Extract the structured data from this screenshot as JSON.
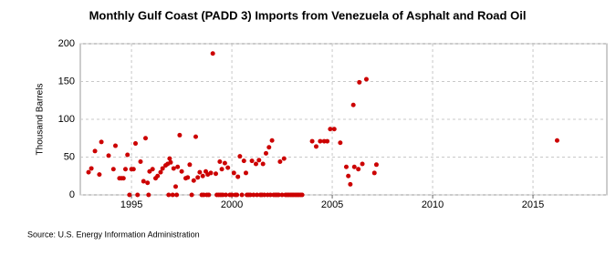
{
  "chart_data": {
    "type": "scatter",
    "title": "Monthly Gulf Coast (PADD 3) Imports from Venezuela of Asphalt and Road Oil",
    "y_label": "Thousand Barrels",
    "source": "Source: U.S. Energy Information Administration",
    "color": "#cc0000",
    "xlim": [
      1992.45,
      2018.68
    ],
    "xticks": [
      1995,
      2000,
      2005,
      2010,
      2015
    ],
    "ylim": [
      0,
      200
    ],
    "yticks": [
      0,
      50,
      100,
      150,
      200
    ],
    "grid": true,
    "x": [
      1992.86,
      1993.0,
      1993.18,
      1993.4,
      1993.5,
      1993.86,
      1994.1,
      1994.2,
      1994.4,
      1994.5,
      1994.6,
      1994.7,
      1994.8,
      1995.0,
      1995.1,
      1995.2,
      1995.45,
      1995.6,
      1995.7,
      1995.8,
      1995.9,
      1996.05,
      1996.2,
      1996.3,
      1996.45,
      1996.55,
      1996.7,
      1996.8,
      1996.9,
      1996.95,
      1997.1,
      1997.2,
      1997.3,
      1997.4,
      1997.5,
      1997.7,
      1997.8,
      1997.9,
      1998.1,
      1998.2,
      1998.3,
      1998.4,
      1998.55,
      1998.7,
      1998.8,
      1998.95,
      1999.05,
      1999.2,
      1999.4,
      1999.5,
      1999.65,
      1999.8,
      2000.1,
      2000.3,
      2000.4,
      2000.6,
      2000.7,
      2001.0,
      2001.2,
      2001.35,
      2001.55,
      2001.7,
      2001.85,
      2002.0,
      2002.4,
      2002.6,
      2004.0,
      2004.2,
      2004.4,
      2004.6,
      2004.75,
      2004.9,
      2005.1,
      2005.4,
      2005.7,
      2005.8,
      2005.9,
      2006.05,
      2006.1,
      2006.3,
      2006.35,
      2006.5,
      2006.7,
      2007.1,
      2007.2,
      2016.2,
      1994.9,
      1995.3,
      1995.85,
      1996.85,
      1997.05,
      1997.25,
      1998.0,
      1998.5,
      1998.6,
      1998.75,
      1998.85,
      1999.25,
      1999.35,
      1999.45,
      1999.55,
      1999.7,
      1999.9,
      2000.0,
      2000.17,
      2000.25,
      2000.5,
      2000.75,
      2000.83,
      2000.92,
      2001.08,
      2001.25,
      2001.42,
      2001.5,
      2001.62,
      2001.78,
      2001.92,
      2002.08,
      2002.17,
      2002.25,
      2002.33,
      2002.5,
      2002.67,
      2002.75,
      2002.83,
      2002.92,
      2003.0,
      2003.08,
      2003.17,
      2003.25,
      2003.33,
      2003.42,
      2003.5
    ],
    "values": [
      30,
      35,
      58,
      27,
      70,
      52,
      34,
      65,
      22,
      22,
      22,
      34,
      53,
      34,
      34,
      68,
      44,
      18,
      75,
      16,
      31,
      34,
      22,
      25,
      30,
      35,
      39,
      41,
      48,
      43,
      35,
      11,
      37,
      79,
      31,
      22,
      23,
      40,
      19,
      77,
      23,
      30,
      25,
      31,
      27,
      29,
      187,
      28,
      44,
      34,
      42,
      36,
      29,
      24,
      51,
      45,
      29,
      45,
      41,
      46,
      41,
      55,
      63,
      72,
      44,
      48,
      71,
      64,
      71,
      71,
      71,
      87,
      87,
      69,
      37,
      25,
      14,
      119,
      37,
      34,
      149,
      41,
      153,
      29,
      40,
      72,
      0,
      0,
      0,
      0,
      0,
      0,
      0,
      0,
      0,
      0,
      0,
      0,
      0,
      0,
      0,
      0,
      0,
      0,
      0,
      0,
      0,
      0,
      0,
      0,
      0,
      0,
      0,
      0,
      0,
      0,
      0,
      0,
      0,
      0,
      0,
      0,
      0,
      0,
      0,
      0,
      0,
      0,
      0,
      0,
      0,
      0,
      0
    ]
  }
}
